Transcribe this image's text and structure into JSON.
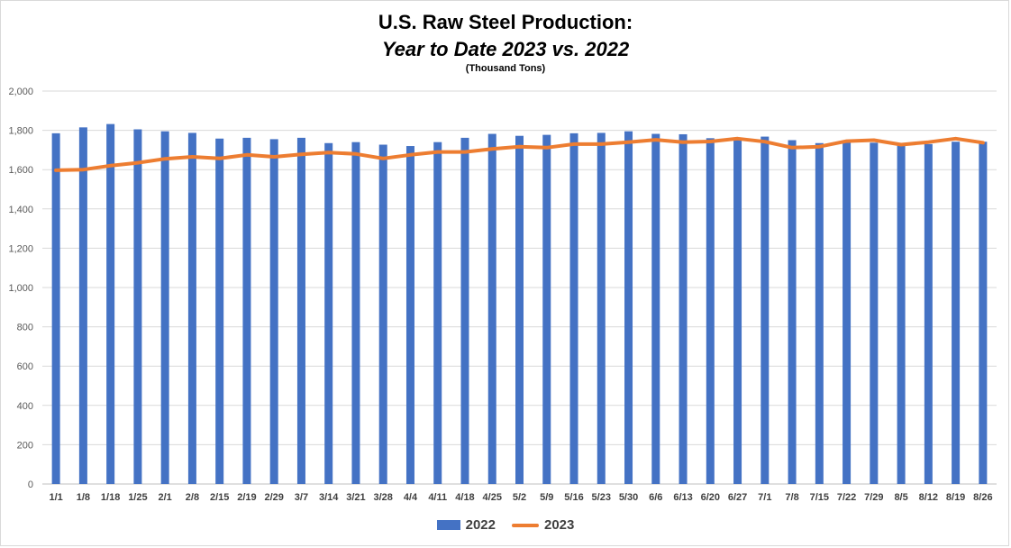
{
  "title": {
    "line1": "U.S. Raw Steel Production:",
    "line2": "Year to Date 2023 vs. 2022",
    "line3": "(Thousand Tons)"
  },
  "colors": {
    "series_2022": "#4472c4",
    "series_2023": "#ed7d31",
    "grid": "#d9d9d9",
    "axis": "#bfbfbf"
  },
  "chart_data": {
    "type": "bar",
    "title": "U.S. Raw Steel Production: Year to Date 2023 vs. 2022",
    "subtitle": "(Thousand Tons)",
    "xlabel": "",
    "ylabel": "",
    "ylim": [
      0,
      2000
    ],
    "yticks": [
      0,
      200,
      400,
      600,
      800,
      1000,
      1200,
      1400,
      1600,
      1800,
      2000
    ],
    "yticks_display": [
      "0",
      "200",
      "400",
      "600",
      "800",
      "1,000",
      "1,200",
      "1,400",
      "1,600",
      "1,800",
      "2,000"
    ],
    "grid": true,
    "legend_position": "bottom",
    "categories": [
      "1/1",
      "1/8",
      "1/18",
      "1/25",
      "2/1",
      "2/8",
      "2/15",
      "2/19",
      "2/29",
      "3/7",
      "3/14",
      "3/21",
      "3/28",
      "4/4",
      "4/11",
      "4/18",
      "4/25",
      "5/2",
      "5/9",
      "5/16",
      "5/23",
      "5/30",
      "6/6",
      "6/13",
      "6/20",
      "6/27",
      "7/1",
      "7/8",
      "7/15",
      "7/22",
      "7/29",
      "8/5",
      "8/12",
      "8/19",
      "8/26"
    ],
    "series": [
      {
        "name": "2022",
        "type": "bar",
        "values": [
          1785,
          1815,
          1832,
          1805,
          1795,
          1787,
          1758,
          1762,
          1755,
          1762,
          1735,
          1740,
          1727,
          1720,
          1740,
          1762,
          1782,
          1772,
          1777,
          1785,
          1787,
          1795,
          1782,
          1780,
          1760,
          1755,
          1768,
          1750,
          1735,
          1742,
          1737,
          1722,
          1730,
          1742,
          1742
        ]
      },
      {
        "name": "2023",
        "type": "line",
        "values": [
          1597,
          1600,
          1620,
          1635,
          1655,
          1665,
          1657,
          1675,
          1665,
          1678,
          1687,
          1680,
          1657,
          1675,
          1690,
          1690,
          1705,
          1717,
          1712,
          1730,
          1730,
          1740,
          1752,
          1740,
          1743,
          1758,
          1742,
          1712,
          1717,
          1745,
          1750,
          1727,
          1740,
          1758,
          1737
        ]
      }
    ]
  }
}
